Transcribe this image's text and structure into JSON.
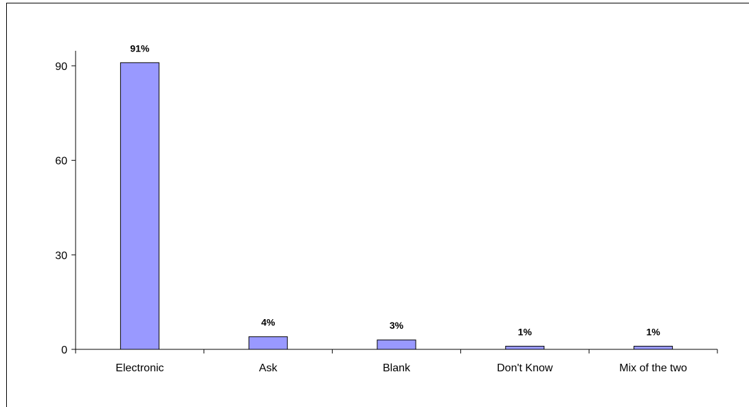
{
  "chart_data": {
    "type": "bar",
    "categories": [
      "Electronic",
      "Ask",
      "Blank",
      "Don't Know",
      "Mix of the two"
    ],
    "values": [
      91,
      4,
      3,
      1,
      1
    ],
    "data_labels": [
      "91%",
      "4%",
      "3%",
      "1%",
      "1%"
    ],
    "title": "",
    "xlabel": "",
    "ylabel": "",
    "ylim": [
      0,
      100
    ],
    "yticks": [
      0,
      30,
      60,
      90
    ],
    "grid": false,
    "legend": "none",
    "bar_color": "#9999FF",
    "bar_edge_color": "#000000"
  }
}
